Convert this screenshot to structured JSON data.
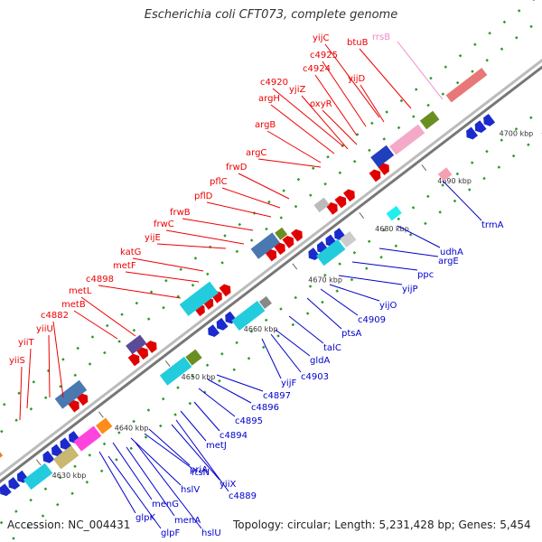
{
  "title": "Escherichia coli CFT073, complete genome",
  "footer": {
    "accession": "Accession: NC_004431",
    "summary": "Topology: circular; Length: 5,231,428 bp; Genes: 5,454"
  },
  "colors": {
    "forward_label": "#ee0000",
    "reverse_label": "#0000cc",
    "rrna_label": "#ee88cc",
    "backbone": "#999999"
  },
  "ticks": [
    {
      "label": "4630 kbp"
    },
    {
      "label": "4640 kbp"
    },
    {
      "label": "4650 kbp"
    },
    {
      "label": "4660 kbp"
    },
    {
      "label": "4670 kbp"
    },
    {
      "label": "4680 kbp"
    },
    {
      "label": "4690 kbp"
    },
    {
      "label": "4700 kbp"
    }
  ],
  "forward_genes": [
    "yiiS",
    "yiiT",
    "c4882",
    "yiiU",
    "metB",
    "metL",
    "c4898",
    "metF",
    "katG",
    "yijE",
    "frwC",
    "frwB",
    "pflD",
    "pflC",
    "frwD",
    "argC",
    "argB",
    "argH",
    "c4920",
    "yjiZ",
    "c4924",
    "oxyR",
    "c4925",
    "yijC",
    "yijD",
    "btuB"
  ],
  "rrna_genes": [
    "rrsB"
  ],
  "reverse_genes": [
    "glpK",
    "glpF",
    "menG",
    "menA",
    "hslV",
    "hslU",
    "ftsN",
    "priA",
    "yiiX",
    "c4889",
    "metJ",
    "c4894",
    "c4895",
    "c4896",
    "c4897",
    "yijF",
    "c4903",
    "gldA",
    "talC",
    "ptsA",
    "c4909",
    "yijO",
    "yijP",
    "ppc",
    "argE",
    "udhA",
    "trmA"
  ]
}
